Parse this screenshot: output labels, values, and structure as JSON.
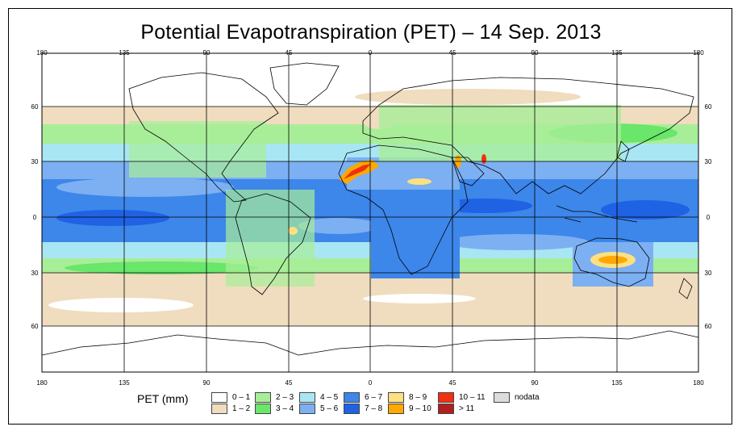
{
  "title": "Potential Evapotranspiration (PET) – 14 Sep. 2013",
  "axes": {
    "lon_ticks": [
      "180",
      "135",
      "90",
      "45",
      "0",
      "45",
      "90",
      "135",
      "180"
    ],
    "lat_ticks": [
      "60",
      "30",
      "0",
      "30",
      "60"
    ]
  },
  "legend": {
    "title": "PET (mm)",
    "classes": [
      {
        "label": "0 – 1",
        "color": "#ffffff"
      },
      {
        "label": "1 – 2",
        "color": "#f0dcbe"
      },
      {
        "label": "2 – 3",
        "color": "#a8ee98"
      },
      {
        "label": "3 – 4",
        "color": "#6ae66a"
      },
      {
        "label": "4 – 5",
        "color": "#a8e6f4"
      },
      {
        "label": "5 – 6",
        "color": "#7cb0f2"
      },
      {
        "label": "6 – 7",
        "color": "#3d86ea"
      },
      {
        "label": "7 – 8",
        "color": "#1f62e4"
      },
      {
        "label": "8 – 9",
        "color": "#ffe080"
      },
      {
        "label": "9 – 10",
        "color": "#ffa800"
      },
      {
        "label": "10 – 11",
        "color": "#f03010"
      },
      {
        "label": "> 11",
        "color": "#b02020"
      },
      {
        "label": "nodata",
        "color": "#dcdcdc"
      }
    ]
  }
}
